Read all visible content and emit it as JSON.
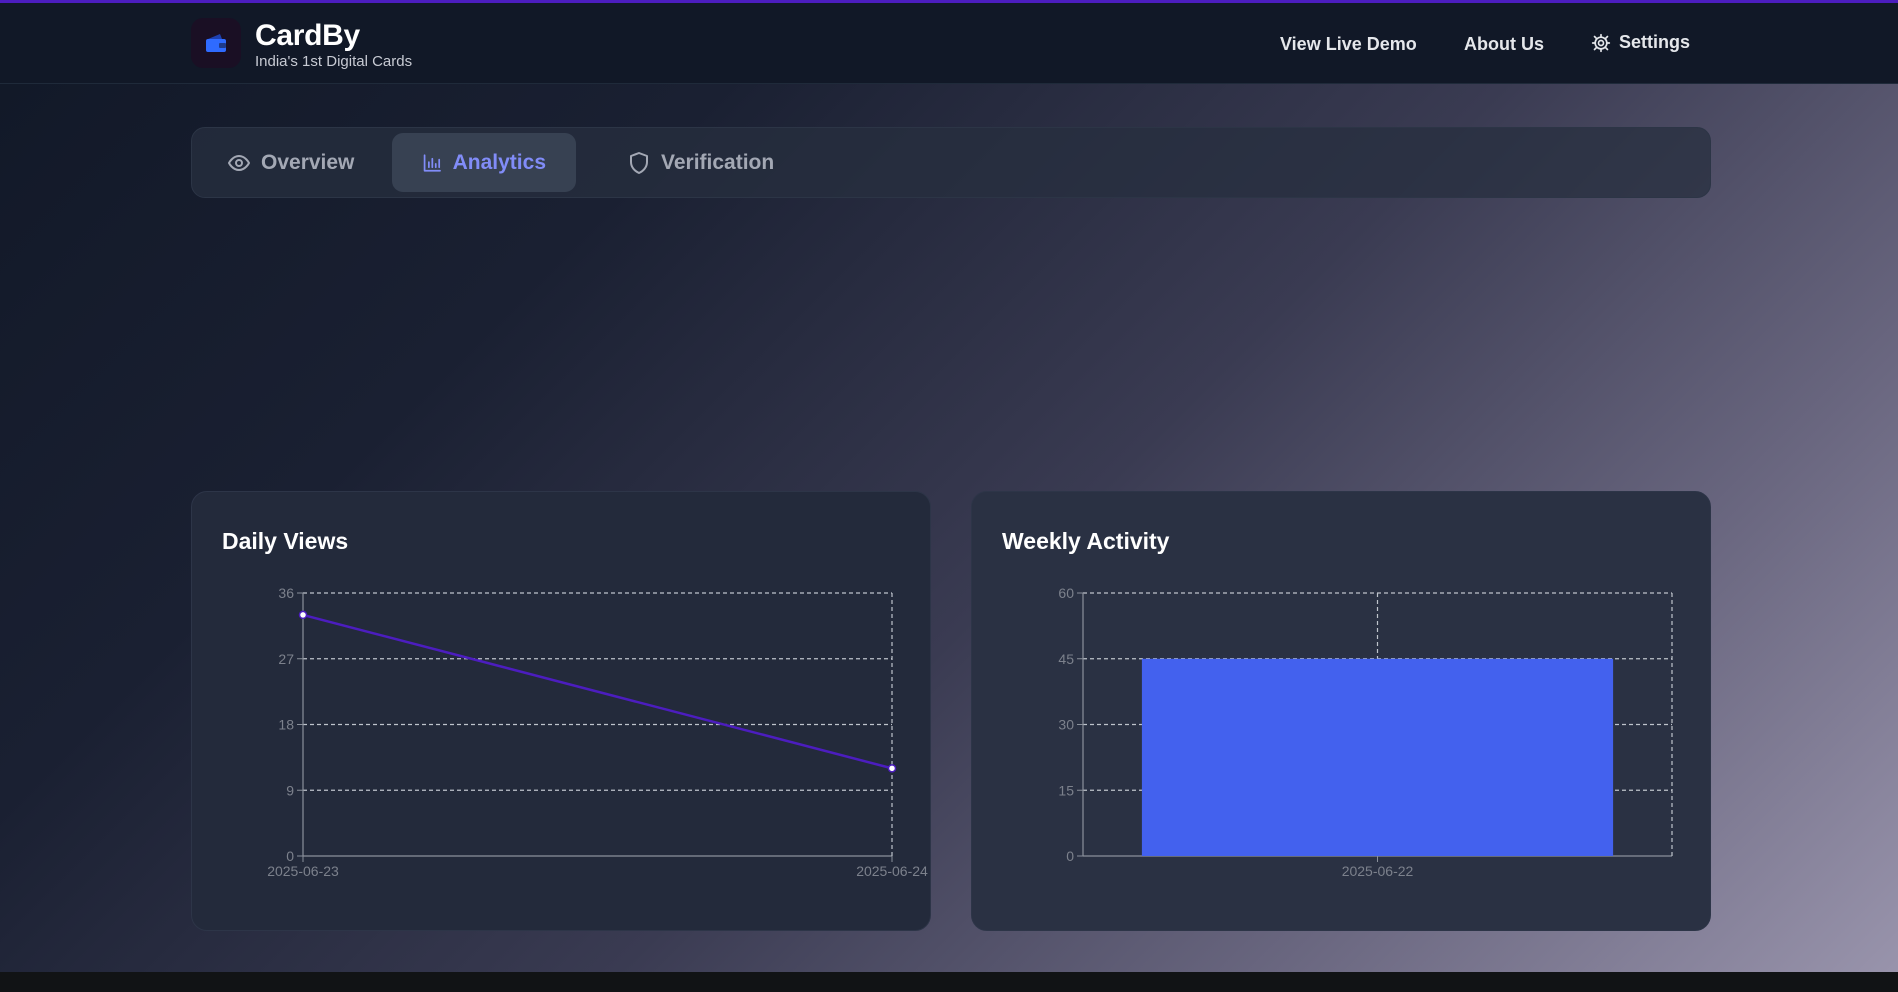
{
  "header": {
    "brand_title": "CardBy",
    "brand_subtitle": "India's 1st Digital Cards",
    "nav": {
      "demo": "View Live Demo",
      "about": "About Us",
      "settings": "Settings"
    }
  },
  "tabs": [
    {
      "label": "Overview",
      "icon": "eye-icon"
    },
    {
      "label": "Analytics",
      "icon": "bar-chart-icon",
      "active": true
    },
    {
      "label": "Verification",
      "icon": "shield-icon"
    }
  ],
  "colors": {
    "accent": "#818cf8",
    "line_series": "#4c1dbf",
    "bar_series": "#4361ee"
  },
  "chart_data": [
    {
      "type": "line",
      "title": "Daily Views",
      "x": [
        "2025-06-23",
        "2025-06-24"
      ],
      "series": [
        {
          "values": [
            33,
            12
          ]
        }
      ],
      "ylim": [
        0,
        36
      ],
      "yticks": [
        0,
        9,
        18,
        27,
        36
      ],
      "grid": true
    },
    {
      "type": "bar",
      "title": "Weekly Activity",
      "categories": [
        "2025-06-22"
      ],
      "values": [
        45
      ],
      "ylim": [
        0,
        60
      ],
      "yticks": [
        0,
        15,
        30,
        45,
        60
      ],
      "grid": true
    }
  ]
}
